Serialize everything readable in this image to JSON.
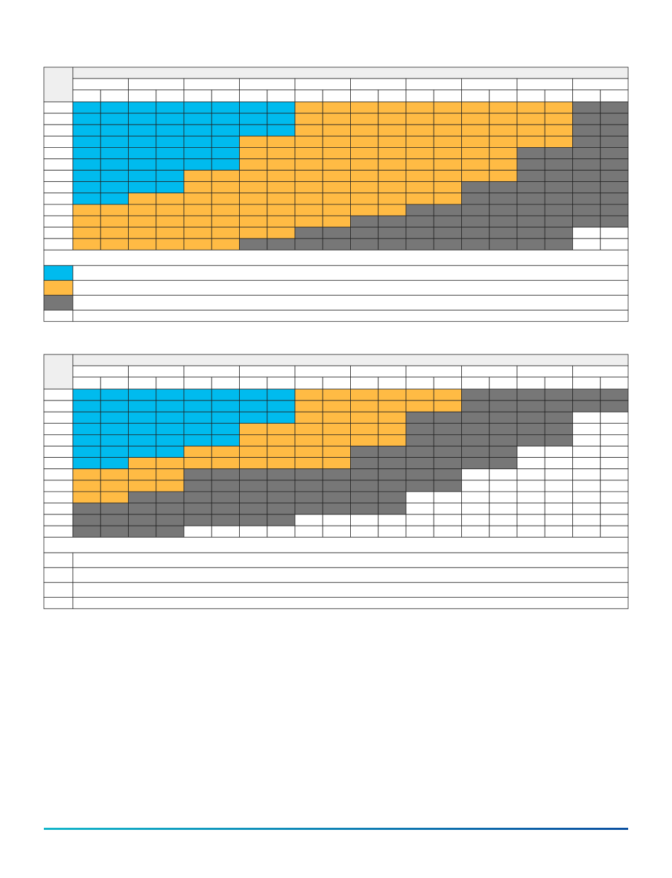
{
  "table_1": {
    "rows": [
      [
        "#0be",
        "#0be",
        "#0be",
        "#0be",
        "#0be",
        "#0be",
        "#0be",
        "#0be",
        "#fb4",
        "#fb4",
        "#fb4",
        "#fb4",
        "#fb4",
        "#fb4",
        "#fb4",
        "#fb4",
        "#fb4",
        "#fb4",
        "#777",
        "#777"
      ],
      [
        "#0be",
        "#0be",
        "#0be",
        "#0be",
        "#0be",
        "#0be",
        "#0be",
        "#0be",
        "#fb4",
        "#fb4",
        "#fb4",
        "#fb4",
        "#fb4",
        "#fb4",
        "#fb4",
        "#fb4",
        "#fb4",
        "#fb4",
        "#777",
        "#777"
      ],
      [
        "#0be",
        "#0be",
        "#0be",
        "#0be",
        "#0be",
        "#0be",
        "#0be",
        "#0be",
        "#fb4",
        "#fb4",
        "#fb4",
        "#fb4",
        "#fb4",
        "#fb4",
        "#fb4",
        "#fb4",
        "#fb4",
        "#fb4",
        "#777",
        "#777"
      ],
      [
        "#0be",
        "#0be",
        "#0be",
        "#0be",
        "#0be",
        "#0be",
        "#fb4",
        "#fb4",
        "#fb4",
        "#fb4",
        "#fb4",
        "#fb4",
        "#fb4",
        "#fb4",
        "#fb4",
        "#fb4",
        "#fb4",
        "#fb4",
        "#777",
        "#777"
      ],
      [
        "#0be",
        "#0be",
        "#0be",
        "#0be",
        "#0be",
        "#0be",
        "#fb4",
        "#fb4",
        "#fb4",
        "#fb4",
        "#fb4",
        "#fb4",
        "#fb4",
        "#fb4",
        "#fb4",
        "#fb4",
        "#777",
        "#777",
        "#777",
        "#777"
      ],
      [
        "#0be",
        "#0be",
        "#0be",
        "#0be",
        "#0be",
        "#0be",
        "#fb4",
        "#fb4",
        "#fb4",
        "#fb4",
        "#fb4",
        "#fb4",
        "#fb4",
        "#fb4",
        "#fb4",
        "#fb4",
        "#777",
        "#777",
        "#777",
        "#777"
      ],
      [
        "#0be",
        "#0be",
        "#0be",
        "#0be",
        "#fb4",
        "#fb4",
        "#fb4",
        "#fb4",
        "#fb4",
        "#fb4",
        "#fb4",
        "#fb4",
        "#fb4",
        "#fb4",
        "#fb4",
        "#fb4",
        "#777",
        "#777",
        "#777",
        "#777"
      ],
      [
        "#0be",
        "#0be",
        "#0be",
        "#0be",
        "#fb4",
        "#fb4",
        "#fb4",
        "#fb4",
        "#fb4",
        "#fb4",
        "#fb4",
        "#fb4",
        "#fb4",
        "#fb4",
        "#777",
        "#777",
        "#777",
        "#777",
        "#777",
        "#777"
      ],
      [
        "#0be",
        "#0be",
        "#fb4",
        "#fb4",
        "#fb4",
        "#fb4",
        "#fb4",
        "#fb4",
        "#fb4",
        "#fb4",
        "#fb4",
        "#fb4",
        "#fb4",
        "#fb4",
        "#777",
        "#777",
        "#777",
        "#777",
        "#777",
        "#777"
      ],
      [
        "#fb4",
        "#fb4",
        "#fb4",
        "#fb4",
        "#fb4",
        "#fb4",
        "#fb4",
        "#fb4",
        "#fb4",
        "#fb4",
        "#fb4",
        "#fb4",
        "#777",
        "#777",
        "#777",
        "#777",
        "#777",
        "#777",
        "#777",
        "#777"
      ],
      [
        "#fb4",
        "#fb4",
        "#fb4",
        "#fb4",
        "#fb4",
        "#fb4",
        "#fb4",
        "#fb4",
        "#fb4",
        "#fb4",
        "#777",
        "#777",
        "#777",
        "#777",
        "#777",
        "#777",
        "#777",
        "#777",
        "#777",
        "#777"
      ],
      [
        "#fb4",
        "#fb4",
        "#fb4",
        "#fb4",
        "#fb4",
        "#fb4",
        "#fb4",
        "#fb4",
        "#777",
        "#777",
        "#777",
        "#777",
        "#777",
        "#777",
        "#777",
        "#777",
        "#777",
        "#777",
        "#fff",
        "#fff"
      ],
      [
        "#fb4",
        "#fb4",
        "#fb4",
        "#fb4",
        "#fb4",
        "#fb4",
        "#777",
        "#777",
        "#777",
        "#777",
        "#777",
        "#777",
        "#777",
        "#777",
        "#777",
        "#777",
        "#777",
        "#777",
        "#fff",
        "#fff"
      ]
    ],
    "legend": [
      "#0be",
      "#fb4",
      "#777",
      "#fff"
    ]
  },
  "table_2": {
    "rows": [
      [
        "#0be",
        "#0be",
        "#0be",
        "#0be",
        "#0be",
        "#0be",
        "#0be",
        "#0be",
        "#fb4",
        "#fb4",
        "#fb4",
        "#fb4",
        "#fb4",
        "#fb4",
        "#777",
        "#777",
        "#777",
        "#777",
        "#777",
        "#777"
      ],
      [
        "#0be",
        "#0be",
        "#0be",
        "#0be",
        "#0be",
        "#0be",
        "#0be",
        "#0be",
        "#fb4",
        "#fb4",
        "#fb4",
        "#fb4",
        "#fb4",
        "#fb4",
        "#777",
        "#777",
        "#777",
        "#777",
        "#777",
        "#777"
      ],
      [
        "#0be",
        "#0be",
        "#0be",
        "#0be",
        "#0be",
        "#0be",
        "#0be",
        "#0be",
        "#fb4",
        "#fb4",
        "#fb4",
        "#fb4",
        "#777",
        "#777",
        "#777",
        "#777",
        "#777",
        "#777",
        "#fff",
        "#fff"
      ],
      [
        "#0be",
        "#0be",
        "#0be",
        "#0be",
        "#0be",
        "#0be",
        "#fb4",
        "#fb4",
        "#fb4",
        "#fb4",
        "#fb4",
        "#fb4",
        "#777",
        "#777",
        "#777",
        "#777",
        "#777",
        "#777",
        "#fff",
        "#fff"
      ],
      [
        "#0be",
        "#0be",
        "#0be",
        "#0be",
        "#0be",
        "#0be",
        "#fb4",
        "#fb4",
        "#fb4",
        "#fb4",
        "#fb4",
        "#fb4",
        "#777",
        "#777",
        "#777",
        "#777",
        "#777",
        "#777",
        "#fff",
        "#fff"
      ],
      [
        "#0be",
        "#0be",
        "#0be",
        "#0be",
        "#fb4",
        "#fb4",
        "#fb4",
        "#fb4",
        "#fb4",
        "#fb4",
        "#777",
        "#777",
        "#777",
        "#777",
        "#777",
        "#777",
        "#fff",
        "#fff",
        "#fff",
        "#fff"
      ],
      [
        "#0be",
        "#0be",
        "#fb4",
        "#fb4",
        "#fb4",
        "#fb4",
        "#fb4",
        "#fb4",
        "#fb4",
        "#fb4",
        "#777",
        "#777",
        "#777",
        "#777",
        "#777",
        "#777",
        "#fff",
        "#fff",
        "#fff",
        "#fff"
      ],
      [
        "#fb4",
        "#fb4",
        "#fb4",
        "#fb4",
        "#777",
        "#777",
        "#777",
        "#777",
        "#777",
        "#777",
        "#777",
        "#777",
        "#777",
        "#777",
        "#fff",
        "#fff",
        "#fff",
        "#fff",
        "#fff",
        "#fff"
      ],
      [
        "#fb4",
        "#fb4",
        "#fb4",
        "#fb4",
        "#777",
        "#777",
        "#777",
        "#777",
        "#777",
        "#777",
        "#777",
        "#777",
        "#777",
        "#777",
        "#fff",
        "#fff",
        "#fff",
        "#fff",
        "#fff",
        "#fff"
      ],
      [
        "#fb4",
        "#fb4",
        "#777",
        "#777",
        "#777",
        "#777",
        "#777",
        "#777",
        "#777",
        "#777",
        "#777",
        "#777",
        "#fff",
        "#fff",
        "#fff",
        "#fff",
        "#fff",
        "#fff",
        "#fff",
        "#fff"
      ],
      [
        "#777",
        "#777",
        "#777",
        "#777",
        "#777",
        "#777",
        "#777",
        "#777",
        "#777",
        "#777",
        "#777",
        "#777",
        "#fff",
        "#fff",
        "#fff",
        "#fff",
        "#fff",
        "#fff",
        "#fff",
        "#fff"
      ],
      [
        "#777",
        "#777",
        "#777",
        "#777",
        "#777",
        "#777",
        "#777",
        "#777",
        "#fff",
        "#fff",
        "#fff",
        "#fff",
        "#fff",
        "#fff",
        "#fff",
        "#fff",
        "#fff",
        "#fff",
        "#fff",
        "#fff"
      ],
      [
        "#777",
        "#777",
        "#777",
        "#777",
        "#fff",
        "#fff",
        "#fff",
        "#fff",
        "#fff",
        "#fff",
        "#fff",
        "#fff",
        "#fff",
        "#fff",
        "#fff",
        "#fff",
        "#fff",
        "#fff",
        "#fff",
        "#fff"
      ]
    ],
    "legend": [
      "#fff",
      "#fff",
      "#fff",
      "#fff"
    ]
  }
}
